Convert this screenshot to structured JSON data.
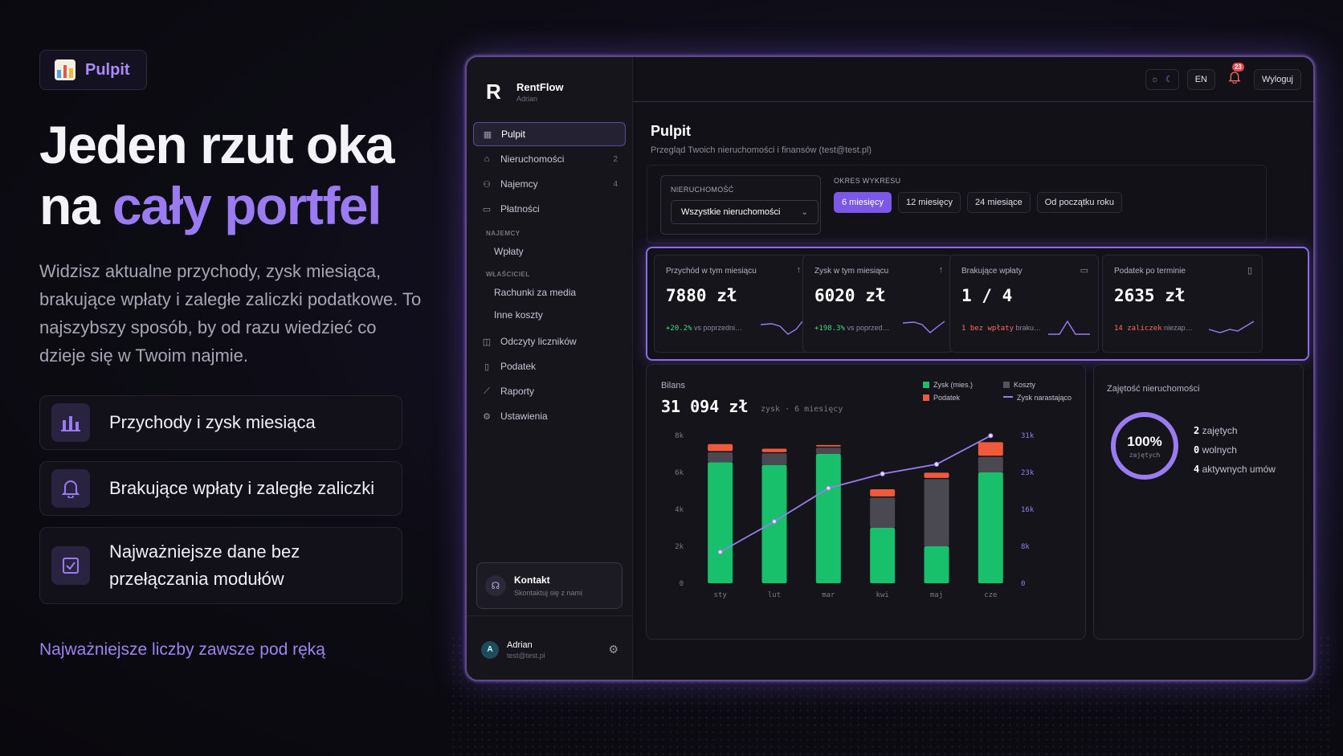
{
  "marketing": {
    "pill_label": "Pulpit",
    "headline_line1": "Jeden rzut oka",
    "headline_line2_plain": "na ",
    "headline_line2_accent": "cały portfel",
    "lead": "Widzisz aktualne przychody, zysk miesiąca, brakujące wpłaty i zaległe zaliczki podatkowe. To najszybszy sposób, by od razu wiedzieć co dzieje się w Twoim najmie.",
    "features": [
      {
        "icon": "bar-chart-icon",
        "text": "Przychody i zysk miesiąca"
      },
      {
        "icon": "bell-icon",
        "text": "Brakujące wpłaty i zaległe zaliczki"
      },
      {
        "icon": "checkbox-icon",
        "text": "Najważniejsze dane bez przełączania modułów"
      }
    ],
    "tagline": "Najważniejsze liczby zawsze pod ręką"
  },
  "app": {
    "brand": {
      "logo": "R",
      "name": "RentFlow",
      "user": "Adrian"
    },
    "nav": {
      "pulpit": "Pulpit",
      "nieruchomosci": "Nieruchomości",
      "nieruchomosci_count": "2",
      "najemcy": "Najemcy",
      "najemcy_count": "4",
      "platnosci": "Płatności",
      "section_najemcy": "NAJEMCY",
      "wplaty": "Wpłaty",
      "section_wlasciciel": "WŁAŚCICIEL",
      "rachunki": "Rachunki za media",
      "inne_koszty": "Inne koszty",
      "odczyty": "Odczyty liczników",
      "podatek": "Podatek",
      "raporty": "Raporty",
      "ustawienia": "Ustawienia"
    },
    "contact": {
      "title": "Kontakt",
      "subtitle": "Skontaktuj się z nami"
    },
    "user": {
      "initial": "A",
      "name": "Adrian",
      "email": "test@test.pl"
    },
    "topbar": {
      "lang": "EN",
      "notifications": "23",
      "logout": "Wyloguj"
    },
    "page": {
      "title": "Pulpit",
      "subtitle": "Przegląd Twoich nieruchomości i finansów (test@test.pl)"
    },
    "filters": {
      "property_label": "NIERUCHOMOŚĆ",
      "property_value": "Wszystkie nieruchomości",
      "period_label": "OKRES WYKRESU",
      "periods": [
        "6 miesięcy",
        "12 miesięcy",
        "24 miesiące",
        "Od początku roku"
      ],
      "active_period": 0
    },
    "kpis": [
      {
        "label": "Przychód w tym miesiącu",
        "value": "7880 zł",
        "delta": "+20.2%",
        "foot": "vs poprzedni…",
        "tone": "green",
        "icon": "arrow-up-icon"
      },
      {
        "label": "Zysk w tym miesiącu",
        "value": "6020 zł",
        "delta": "+198.3%",
        "foot": "vs poprzed…",
        "tone": "green",
        "icon": "arrow-up-icon"
      },
      {
        "label": "Brakujące wpłaty",
        "value": "1 / 4",
        "delta": "1 bez wpłaty",
        "foot": "braku…",
        "tone": "red",
        "icon": "card-icon"
      },
      {
        "label": "Podatek po terminie",
        "value": "2635 zł",
        "delta": "14 zaliczek",
        "foot": "niezap…",
        "tone": "red",
        "icon": "document-icon"
      }
    ],
    "balance": {
      "label": "Bilans",
      "value": "31 094 zł",
      "sub": "zysk · 6 miesięcy"
    },
    "legend": {
      "zysk": "Zysk (mies.)",
      "koszty": "Koszty",
      "podatek": "Podatek",
      "narastajaco": "Zysk narastająco"
    },
    "occupancy": {
      "label": "Zajętość nieruchomości",
      "percent": "100%",
      "percent_label": "zajętych",
      "percent_value": 1.0,
      "stats": [
        {
          "n": "2",
          "t": "zajętych"
        },
        {
          "n": "0",
          "t": "wolnych"
        },
        {
          "n": "4",
          "t": "aktywnych umów"
        }
      ]
    }
  },
  "colors": {
    "accent": "#9b7bf2",
    "profit": "#19c06b",
    "costs": "#4a4850",
    "tax": "#f0593a",
    "cumulative": "#9b7bf2"
  },
  "chart_data": {
    "type": "bar",
    "categories": [
      "sty",
      "lut",
      "mar",
      "kwi",
      "maj",
      "cze"
    ],
    "series": [
      {
        "name": "Zysk (mies.)",
        "values": [
          6550,
          6400,
          7000,
          3000,
          2000,
          6000
        ],
        "stack": true
      },
      {
        "name": "Koszty",
        "values": [
          600,
          700,
          400,
          1700,
          3700,
          900
        ],
        "stack": true
      },
      {
        "name": "Podatek",
        "values": [
          450,
          250,
          150,
          450,
          350,
          800
        ],
        "stack": true
      },
      {
        "name": "Zysk narastająco",
        "values": [
          6550,
          12950,
          19950,
          22950,
          24950,
          30950
        ],
        "axis": "right"
      }
    ],
    "ylim": [
      0,
      8000
    ],
    "yticks": [
      "0",
      "2k",
      "4k",
      "6k",
      "8k"
    ],
    "y2lim": [
      0,
      31000
    ],
    "y2ticks": [
      "0",
      "8k",
      "16k",
      "23k",
      "31k"
    ],
    "xlabel": "",
    "ylabel": ""
  }
}
